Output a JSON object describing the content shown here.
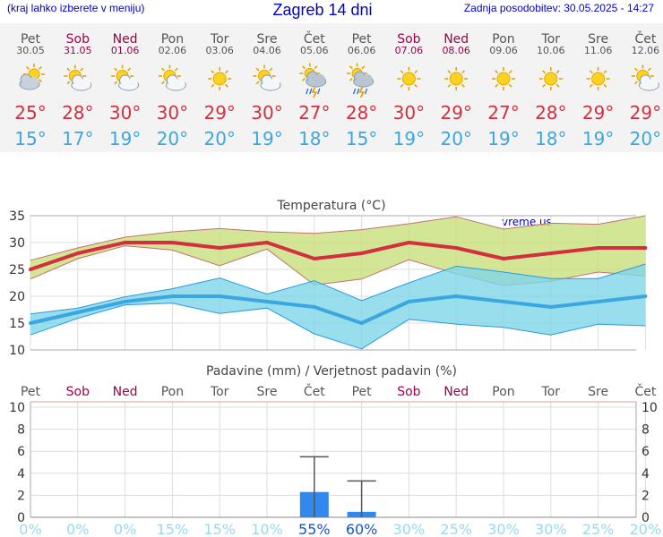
{
  "header": {
    "menu_hint": "(kraj lahko izberete v meniju)",
    "title": "Zagreb 14 dni",
    "updated": "Zadnja posodobitev: 30.05.2025 - 14:27"
  },
  "colors": {
    "title": "#0000cc",
    "weekday": "#555555",
    "weekend": "#a0004a",
    "temp_max": "#d32f40",
    "temp_min": "#3ba7e0",
    "band_max": "#c8e07a",
    "band_min": "#7fd6e8",
    "precip_bar": "#3388ee",
    "prob_low": "#9ad8f0",
    "prob_high": "#1a55cc"
  },
  "days": [
    {
      "name": "Pet",
      "date": "30.05",
      "weekend": false,
      "icon": "cloudy-sun-icon",
      "max": "25°",
      "min": "15°"
    },
    {
      "name": "Sob",
      "date": "31.05",
      "weekend": true,
      "icon": "sunny-cloud-icon",
      "max": "28°",
      "min": "17°"
    },
    {
      "name": "Ned",
      "date": "01.06",
      "weekend": true,
      "icon": "sunny-cloud-icon",
      "max": "30°",
      "min": "19°"
    },
    {
      "name": "Pon",
      "date": "02.06",
      "weekend": false,
      "icon": "sunny-cloud-icon",
      "max": "30°",
      "min": "20°"
    },
    {
      "name": "Tor",
      "date": "03.06",
      "weekend": false,
      "icon": "sunny-icon",
      "max": "29°",
      "min": "20°"
    },
    {
      "name": "Sre",
      "date": "04.06",
      "weekend": false,
      "icon": "sunny-cloud-icon",
      "max": "30°",
      "min": "19°"
    },
    {
      "name": "Čet",
      "date": "05.06",
      "weekend": false,
      "icon": "thunderstorm-icon",
      "max": "27°",
      "min": "18°"
    },
    {
      "name": "Pet",
      "date": "06.06",
      "weekend": false,
      "icon": "thunderstorm-icon",
      "max": "28°",
      "min": "15°"
    },
    {
      "name": "Sob",
      "date": "07.06",
      "weekend": true,
      "icon": "sunny-icon",
      "max": "30°",
      "min": "19°"
    },
    {
      "name": "Ned",
      "date": "08.06",
      "weekend": true,
      "icon": "sunny-icon",
      "max": "29°",
      "min": "20°"
    },
    {
      "name": "Pon",
      "date": "09.06",
      "weekend": false,
      "icon": "sunny-icon",
      "max": "27°",
      "min": "19°"
    },
    {
      "name": "Tor",
      "date": "10.06",
      "weekend": false,
      "icon": "sunny-icon",
      "max": "28°",
      "min": "18°"
    },
    {
      "name": "Sre",
      "date": "11.06",
      "weekend": false,
      "icon": "sunny-icon",
      "max": "29°",
      "min": "19°"
    },
    {
      "name": "Čet",
      "date": "12.06",
      "weekend": false,
      "icon": "sunny-cloud-icon",
      "max": "29°",
      "min": "20°"
    }
  ],
  "chart_data": [
    {
      "type": "line",
      "title": "Temperatura (°C)",
      "watermark": "vreme.us",
      "ylim": [
        10,
        35
      ],
      "yticks": [
        "10",
        "15",
        "20",
        "25",
        "30",
        "35"
      ],
      "grid": true,
      "x": [
        "30.05",
        "31.05",
        "01.06",
        "02.06",
        "03.06",
        "04.06",
        "05.06",
        "06.06",
        "07.06",
        "08.06",
        "09.06",
        "10.06",
        "11.06",
        "12.06"
      ],
      "series": [
        {
          "values": [
            25,
            28,
            30,
            30,
            29,
            30,
            27,
            28,
            30,
            29,
            27,
            28,
            29,
            29
          ]
        },
        {
          "values": [
            15,
            17,
            19,
            20,
            20,
            19,
            18,
            15,
            19,
            20,
            19,
            18,
            19,
            20
          ]
        }
      ],
      "bands": [
        {
          "upper": [
            26.7,
            29,
            31,
            32,
            32.6,
            32,
            31.7,
            32.4,
            33.5,
            34.8,
            32.5,
            33.6,
            33.4,
            35
          ],
          "lower": [
            23.2,
            27,
            29.4,
            28.6,
            25.7,
            28.8,
            22.1,
            23.2,
            26.8,
            24.2,
            22,
            22.8,
            24.5,
            23.8
          ]
        },
        {
          "upper": [
            16.7,
            17.8,
            19.9,
            21.4,
            23.4,
            20.4,
            22.9,
            19.2,
            22.5,
            25.6,
            24.5,
            23.3,
            23.3,
            26
          ],
          "lower": [
            12.8,
            15.9,
            18.4,
            18.7,
            16.8,
            17.8,
            13,
            10.2,
            15.7,
            14.8,
            14.2,
            12.8,
            14.8,
            14.5
          ]
        }
      ]
    },
    {
      "type": "bar",
      "title": "Padavine (mm) / Verjetnost padavin (%)",
      "ylim": [
        0,
        10
      ],
      "yticks": [
        "0",
        "2",
        "4",
        "6",
        "8",
        "10"
      ],
      "grid": true,
      "categories": [
        "Pet",
        "Sob",
        "Ned",
        "Pon",
        "Tor",
        "Sre",
        "Čet",
        "Pet",
        "Sob",
        "Ned",
        "Pon",
        "Tor",
        "Sre",
        "Čet"
      ],
      "weekend": [
        false,
        true,
        true,
        false,
        false,
        false,
        false,
        false,
        true,
        true,
        false,
        false,
        false,
        false
      ],
      "values": [
        0,
        0,
        0,
        0,
        0,
        0,
        2.3,
        0.5,
        0,
        0,
        0,
        0,
        0,
        0
      ],
      "error_high": [
        0,
        0,
        0,
        0,
        0,
        0,
        5.5,
        3.3,
        0,
        0,
        0,
        0,
        0,
        0
      ],
      "probability": [
        "0%",
        "0%",
        "0%",
        "15%",
        "15%",
        "10%",
        "55%",
        "60%",
        "30%",
        "25%",
        "30%",
        "30%",
        "25%",
        "20%"
      ]
    }
  ]
}
